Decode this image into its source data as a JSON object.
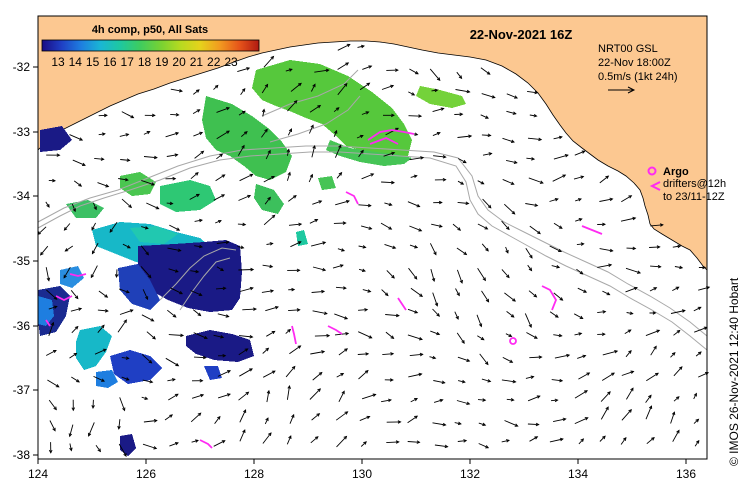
{
  "map": {
    "date_title": "22-Nov-2021 16Z",
    "side_credit": "© IMOS 26-Nov-2021 12:40 Hobart",
    "colorbar": {
      "title": "4h comp, p50, All Sats",
      "labels": [
        "13",
        "14",
        "15",
        "16",
        "17",
        "18",
        "19",
        "20",
        "21",
        "22",
        "23"
      ],
      "stops": [
        "#1a0c84",
        "#1f3fc4",
        "#1e7ee0",
        "#1ab6d4",
        "#1ec8a0",
        "#3dcc60",
        "#79d232",
        "#b8da20",
        "#e6d21c",
        "#f29a20",
        "#e6541a",
        "#b01a12"
      ]
    },
    "current_info": {
      "line1": "NRT00 GSL",
      "line2": "22-Nov 18:00Z",
      "line3": "0.5m/s (1kt 24h)"
    },
    "argo_legend": {
      "label": "Argo",
      "line2": "drifters@12h",
      "line3": "to 23/11-12Z"
    },
    "x_ticks": [
      "124",
      "126",
      "128",
      "130",
      "132",
      "134",
      "136"
    ],
    "y_ticks": [
      "-32",
      "-33",
      "-34",
      "-35",
      "-36",
      "-37",
      "-38"
    ],
    "colors": {
      "land": "#fcc891",
      "magenta": "#ff2bf2",
      "contour": "#a8a8a8",
      "frame": "#000000"
    }
  }
}
